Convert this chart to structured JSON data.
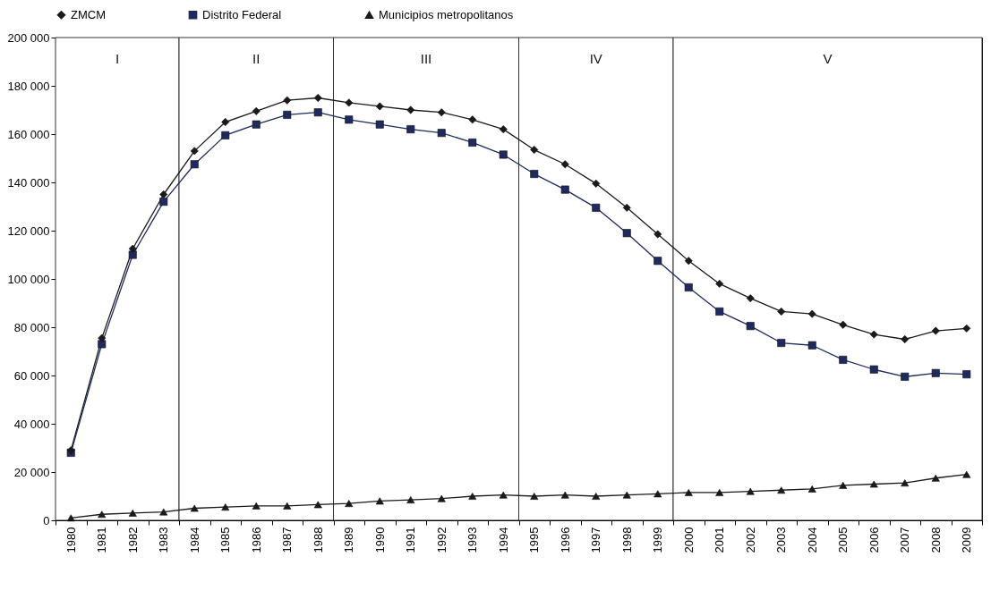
{
  "chart_data": {
    "type": "line",
    "categories": [
      "1980",
      "1981",
      "1982",
      "1983",
      "1984",
      "1985",
      "1986",
      "1987",
      "1988",
      "1989",
      "1990",
      "1991",
      "1992",
      "1993",
      "1994",
      "1995",
      "1996",
      "1997",
      "1998",
      "1999",
      "2000",
      "2001",
      "2002",
      "2003",
      "2004",
      "2005",
      "2006",
      "2007",
      "2008",
      "2009"
    ],
    "series": [
      {
        "name": "ZMCM",
        "color": "#1a1a1a",
        "marker": "diamond",
        "values": [
          29000,
          75500,
          112500,
          135000,
          153000,
          165000,
          169500,
          174000,
          175000,
          173000,
          171500,
          170000,
          169000,
          166000,
          162000,
          153500,
          147500,
          139500,
          129500,
          118500,
          107500,
          98000,
          92000,
          86500,
          85500,
          81000,
          77000,
          75000,
          78500,
          79500
        ]
      },
      {
        "name": "Distrito Federal",
        "color": "#1f2a5e",
        "marker": "square",
        "values": [
          28000,
          73000,
          110000,
          132000,
          147500,
          159500,
          164000,
          168000,
          169000,
          166000,
          164000,
          162000,
          160500,
          156500,
          151500,
          143500,
          137000,
          129500,
          119000,
          107500,
          96500,
          86500,
          80500,
          73500,
          72500,
          66500,
          62500,
          59500,
          61000,
          60500
        ]
      },
      {
        "name": "Municipios metropolitanos",
        "color": "#1a1a1a",
        "marker": "triangle",
        "values": [
          1000,
          2500,
          3000,
          3500,
          5000,
          5500,
          6000,
          6000,
          6500,
          7000,
          8000,
          8500,
          9000,
          10000,
          10500,
          10000,
          10500,
          10000,
          10500,
          11000,
          11500,
          11500,
          12000,
          12500,
          13000,
          14500,
          15000,
          15500,
          17500,
          19000
        ]
      }
    ],
    "ylim": [
      0,
      200000
    ],
    "yticks": [
      {
        "value": 0,
        "label": "0"
      },
      {
        "value": 20000,
        "label": "20 000"
      },
      {
        "value": 40000,
        "label": "40 000"
      },
      {
        "value": 60000,
        "label": "60 000"
      },
      {
        "value": 80000,
        "label": "80 000"
      },
      {
        "value": 100000,
        "label": "100 000"
      },
      {
        "value": 120000,
        "label": "120 000"
      },
      {
        "value": 140000,
        "label": "140 000"
      },
      {
        "value": 160000,
        "label": "160 000"
      },
      {
        "value": 180000,
        "label": "180 000"
      },
      {
        "value": 200000,
        "label": "200 000"
      }
    ],
    "bands": [
      {
        "axis": "x",
        "from": "1980",
        "to": "1983",
        "label": "I"
      },
      {
        "axis": "x",
        "from": "1984",
        "to": "1988",
        "label": "II"
      },
      {
        "axis": "x",
        "from": "1989",
        "to": "1994",
        "label": "III"
      },
      {
        "axis": "x",
        "from": "1995",
        "to": "1999",
        "label": "IV"
      },
      {
        "axis": "x",
        "from": "2000",
        "to": "2009",
        "label": "V"
      }
    ],
    "grid": false,
    "legend": "top",
    "line_style": "solid"
  }
}
